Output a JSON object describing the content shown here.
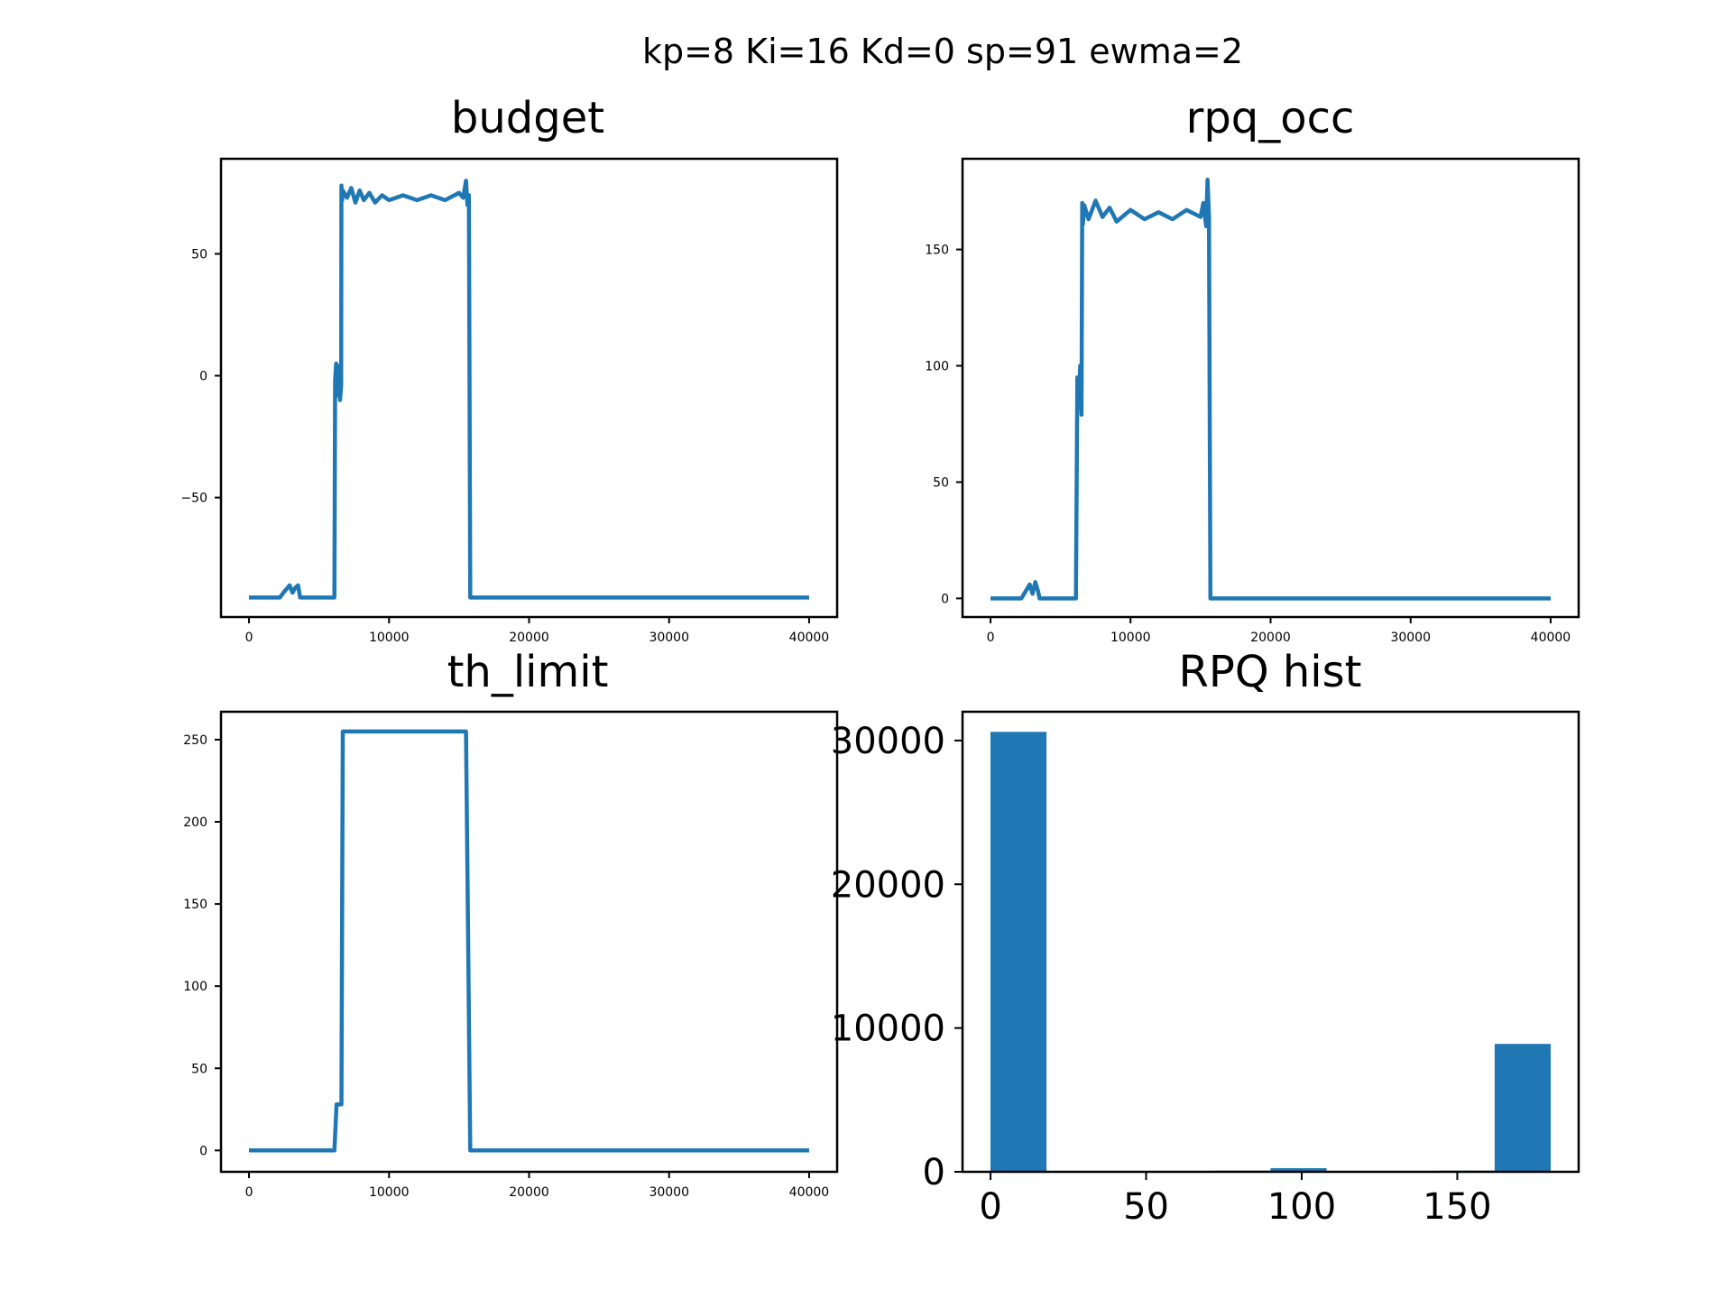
{
  "figure": {
    "suptitle": "kp=8 Ki=16 Kd=0 sp=91 ewma=2"
  },
  "chart_data": [
    {
      "type": "line",
      "title": "budget",
      "xlabel": "",
      "ylabel": "",
      "color": "#1f77b4",
      "xlim": [
        -2000,
        42000
      ],
      "ylim": [
        -99,
        89
      ],
      "xticks": [
        0,
        10000,
        20000,
        30000,
        40000
      ],
      "xtick_labels": [
        "0",
        "10000",
        "20000",
        "30000",
        "40000"
      ],
      "yticks": [
        -50,
        0,
        50
      ],
      "ytick_labels": [
        "−50",
        "0",
        "50"
      ],
      "x": [
        0,
        2200,
        2600,
        2900,
        3100,
        3300,
        3500,
        3650,
        6100,
        6150,
        6220,
        6300,
        6400,
        6500,
        6580,
        6600,
        6650,
        6700,
        7000,
        7300,
        7600,
        7900,
        8200,
        8600,
        9000,
        9500,
        10000,
        11000,
        12000,
        13000,
        14000,
        15000,
        15300,
        15500,
        15600,
        15700,
        15800,
        40000
      ],
      "y": [
        -91,
        -91,
        -88,
        -86,
        -89,
        -87,
        -86,
        -91,
        -91,
        -2,
        5,
        -8,
        4,
        -10,
        -4,
        78,
        72,
        76,
        73,
        77,
        71,
        76,
        72,
        75,
        71,
        74,
        72,
        74,
        72,
        74,
        72,
        75,
        73,
        80,
        70,
        74,
        -91,
        -91
      ]
    },
    {
      "type": "line",
      "title": "rpq_occ",
      "xlabel": "",
      "ylabel": "",
      "color": "#1f77b4",
      "xlim": [
        -2000,
        42000
      ],
      "ylim": [
        -8,
        189
      ],
      "xticks": [
        0,
        10000,
        20000,
        30000,
        40000
      ],
      "xtick_labels": [
        "0",
        "10000",
        "20000",
        "30000",
        "40000"
      ],
      "yticks": [
        0,
        50,
        100,
        150
      ],
      "ytick_labels": [
        "0",
        "50",
        "100",
        "150"
      ],
      "x": [
        0,
        2200,
        2500,
        2800,
        3000,
        3200,
        3400,
        3500,
        6100,
        6200,
        6300,
        6400,
        6500,
        6550,
        6600,
        6700,
        7000,
        7500,
        8000,
        8500,
        9000,
        10000,
        11000,
        12000,
        13000,
        14000,
        15000,
        15200,
        15400,
        15500,
        15600,
        15700,
        40000
      ],
      "y": [
        0,
        0,
        3,
        6,
        2,
        7,
        3,
        0,
        0,
        95,
        82,
        100,
        79,
        170,
        161,
        169,
        163,
        171,
        164,
        168,
        162,
        167,
        163,
        166,
        163,
        167,
        164,
        170,
        160,
        180,
        164,
        0,
        0
      ]
    },
    {
      "type": "line",
      "title": "th_limit",
      "xlabel": "",
      "ylabel": "",
      "color": "#1f77b4",
      "xlim": [
        -2000,
        42000
      ],
      "ylim": [
        -13,
        267
      ],
      "xticks": [
        0,
        10000,
        20000,
        30000,
        40000
      ],
      "xtick_labels": [
        "0",
        "10000",
        "20000",
        "30000",
        "40000"
      ],
      "yticks": [
        0,
        50,
        100,
        150,
        200,
        250
      ],
      "ytick_labels": [
        "0",
        "50",
        "100",
        "150",
        "200",
        "250"
      ],
      "x": [
        0,
        6100,
        6250,
        6600,
        6700,
        15500,
        15800,
        40000
      ],
      "y": [
        0,
        0,
        28,
        28,
        255,
        255,
        0,
        0
      ]
    },
    {
      "type": "bar",
      "title": "RPQ hist",
      "xlabel": "",
      "ylabel": "",
      "color": "#1f77b4",
      "xlim": [
        -9,
        189
      ],
      "ylim": [
        0,
        32000
      ],
      "xticks": [
        0,
        50,
        100,
        150
      ],
      "xtick_labels": [
        "0",
        "50",
        "100",
        "150"
      ],
      "yticks": [
        0,
        10000,
        20000,
        30000
      ],
      "ytick_labels": [
        "0",
        "10000",
        "20000",
        "30000"
      ],
      "bin_edges": [
        0,
        18,
        36,
        54,
        72,
        90,
        108,
        126,
        144,
        162,
        180
      ],
      "values": [
        30600,
        0,
        0,
        0,
        80,
        250,
        0,
        0,
        80,
        8900
      ]
    }
  ]
}
